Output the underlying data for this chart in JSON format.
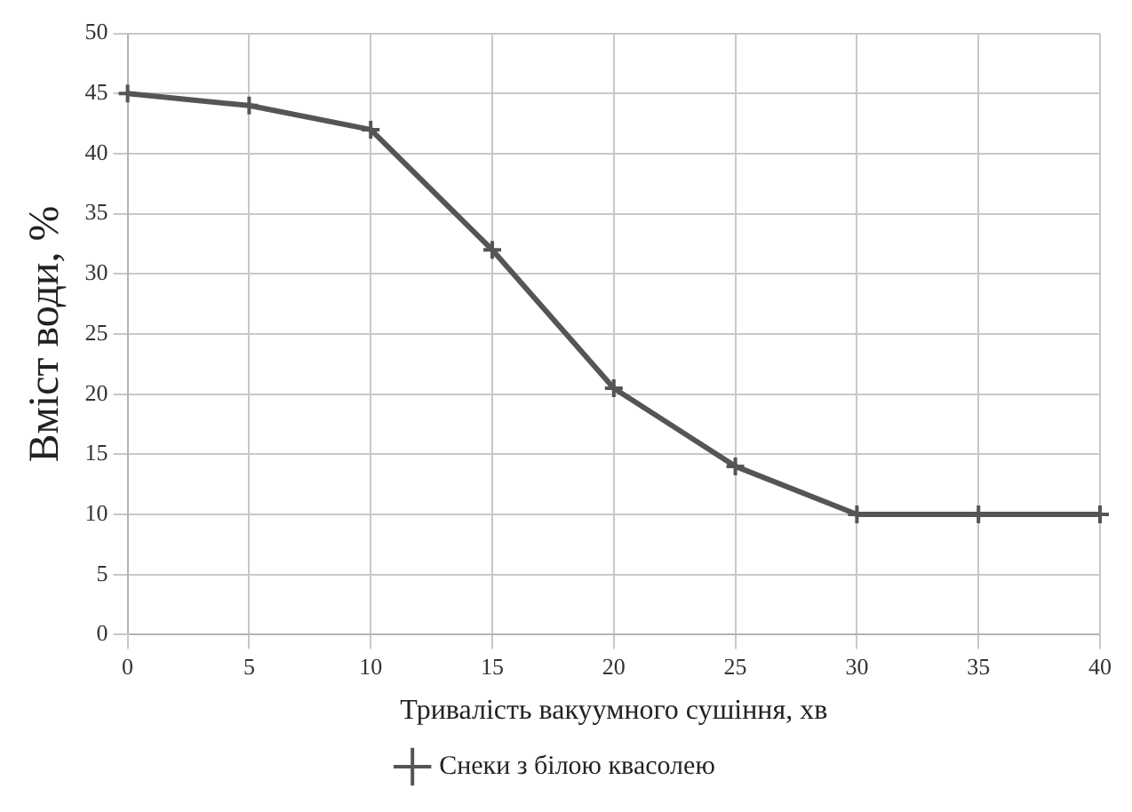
{
  "chart_data": {
    "type": "line",
    "xlabel": "Тривалість вакуумного сушіння, хв",
    "ylabel": "Вміст води, %",
    "x": [
      0,
      5,
      10,
      15,
      20,
      25,
      30,
      35,
      40
    ],
    "series": [
      {
        "name": "Снеки з білою квасолею",
        "color": "#555555",
        "values": [
          45,
          44,
          42,
          32,
          20.5,
          14,
          10,
          10,
          10
        ]
      }
    ],
    "xlim": [
      0,
      40
    ],
    "xticks": [
      0,
      5,
      10,
      15,
      20,
      25,
      30,
      35,
      40
    ],
    "ylim": [
      0,
      50
    ],
    "yticks": [
      0,
      5,
      10,
      15,
      20,
      25,
      30,
      35,
      40,
      45,
      50
    ],
    "grid": true,
    "legend": "bottom",
    "marker": "cross",
    "line_style": "solid"
  }
}
